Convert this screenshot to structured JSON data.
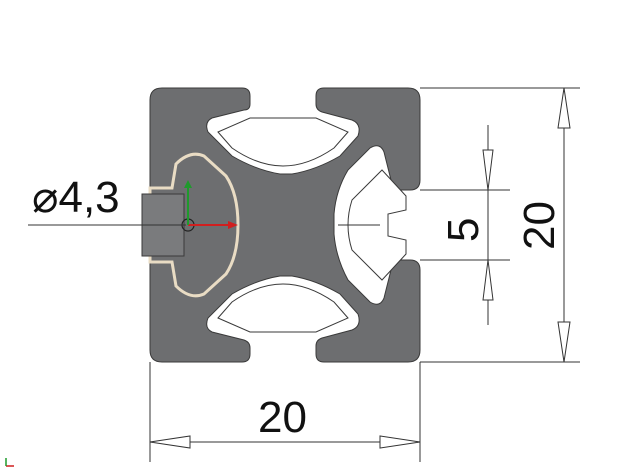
{
  "drawing": {
    "hole_label": "⌀4,3",
    "slot_label": "5",
    "height_label": "20",
    "width_label": "20"
  },
  "colors": {
    "profile": "#6d6e70",
    "outline": "#3a3a3a",
    "tnut_edge": "#e9dcc4",
    "axis_x": "#d11f1f",
    "axis_y": "#1f9a2c"
  }
}
